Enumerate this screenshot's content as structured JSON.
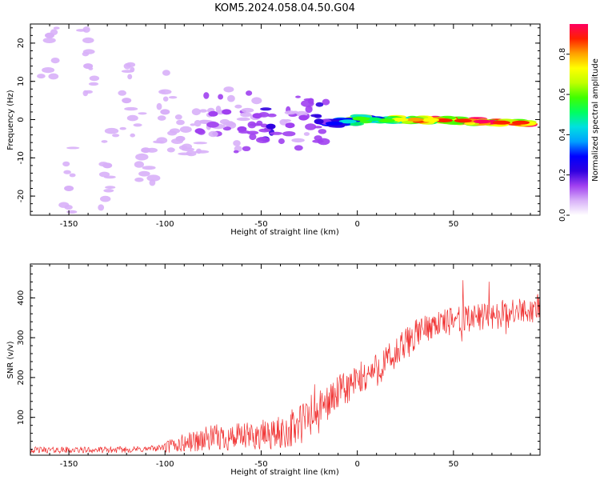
{
  "title": "KOM5.2024.058.04.50.G04",
  "chart_data": [
    {
      "type": "heatmap",
      "xlabel": "Height of straight line (km)",
      "ylabel": "Frequency (Hz)",
      "xlim": [
        -170,
        95
      ],
      "ylim": [
        -25,
        25
      ],
      "x_ticks": [
        -150,
        -100,
        -50,
        0,
        50
      ],
      "y_ticks": [
        -20,
        -10,
        0,
        10,
        20
      ],
      "colorbar": {
        "label": "Normalized spectral amplitude",
        "range": [
          0,
          0.95
        ],
        "ticks": [
          0.0,
          0.2,
          0.4,
          0.6,
          0.8
        ],
        "colors": [
          "#ffffff",
          "#d8b0f8",
          "#a040f0",
          "#3000e0",
          "#0000ff",
          "#00a0ff",
          "#00e0e0",
          "#00ff60",
          "#40ff00",
          "#c0ff00",
          "#ffff00",
          "#ffa000",
          "#ff2000",
          "#ff0060"
        ]
      },
      "cells": [
        {
          "x": 85,
          "y": -0.8,
          "v": 0.85
        },
        {
          "x": 75,
          "y": -0.8,
          "v": 0.9
        },
        {
          "x": 65,
          "y": -0.5,
          "v": 0.92
        },
        {
          "x": 55,
          "y": -0.3,
          "v": 0.88
        },
        {
          "x": 45,
          "y": -0.2,
          "v": 0.9
        },
        {
          "x": 38,
          "y": -0.1,
          "v": 0.75
        },
        {
          "x": 30,
          "y": 0.0,
          "v": 0.8
        },
        {
          "x": 22,
          "y": 0.0,
          "v": 0.7
        },
        {
          "x": 15,
          "y": -0.2,
          "v": 0.55
        },
        {
          "x": 8,
          "y": 0.1,
          "v": 0.5
        },
        {
          "x": 2,
          "y": 0.2,
          "v": 0.6
        },
        {
          "x": -5,
          "y": -0.5,
          "v": 0.45
        },
        {
          "x": -12,
          "y": -1.0,
          "v": 0.3
        },
        {
          "x": -20,
          "y": -0.5,
          "v": 0.22
        },
        {
          "x": -28,
          "y": 0.5,
          "v": 0.15
        },
        {
          "x": -35,
          "y": -1.5,
          "v": 0.14
        },
        {
          "x": -45,
          "y": -1.8,
          "v": 0.2
        },
        {
          "x": -52,
          "y": 1.0,
          "v": 0.13
        },
        {
          "x": -60,
          "y": -2.5,
          "v": 0.12
        },
        {
          "x": -68,
          "y": 2.0,
          "v": 0.12
        },
        {
          "x": -75,
          "y": 1.5,
          "v": 0.13
        },
        {
          "x": -82,
          "y": -3.0,
          "v": 0.11
        },
        {
          "x": -92,
          "y": -5.0,
          "v": 0.1
        },
        {
          "x": -100,
          "y": 2.0,
          "v": 0.09
        },
        {
          "x": -110,
          "y": -8.0,
          "v": 0.07
        },
        {
          "x": -120,
          "y": 5.0,
          "v": 0.06
        },
        {
          "x": -130,
          "y": -12.0,
          "v": 0.06
        },
        {
          "x": -140,
          "y": 14.0,
          "v": 0.07
        },
        {
          "x": -150,
          "y": -18.0,
          "v": 0.05
        },
        {
          "x": -160,
          "y": 22.0,
          "v": 0.06
        }
      ]
    },
    {
      "type": "line",
      "xlabel": "Height of straight line (km)",
      "ylabel": "SNR (v/v)",
      "xlim": [
        -170,
        95
      ],
      "ylim": [
        5,
        485
      ],
      "x_ticks": [
        -150,
        -100,
        -50,
        0,
        50
      ],
      "y_ticks": [
        100,
        200,
        300,
        400
      ],
      "color": "#f03030",
      "series": [
        {
          "x": [
            -170,
            -150,
            -130,
            -110,
            -100,
            -90,
            -80,
            -70,
            -60,
            -50,
            -40,
            -30,
            -20,
            -10,
            0,
            10,
            20,
            30,
            40,
            50,
            60,
            70,
            80,
            90,
            95
          ],
          "y": [
            18,
            18,
            18,
            20,
            25,
            35,
            45,
            50,
            50,
            55,
            60,
            80,
            120,
            160,
            190,
            220,
            255,
            310,
            335,
            340,
            350,
            355,
            360,
            370,
            380
          ]
        }
      ]
    }
  ]
}
